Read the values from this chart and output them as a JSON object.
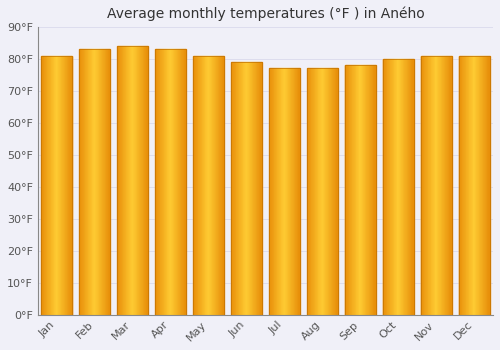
{
  "title": "Average monthly temperatures (°F ) in Aného",
  "months": [
    "Jan",
    "Feb",
    "Mar",
    "Apr",
    "May",
    "Jun",
    "Jul",
    "Aug",
    "Sep",
    "Oct",
    "Nov",
    "Dec"
  ],
  "values": [
    81,
    83,
    84,
    83,
    81,
    79,
    77,
    77,
    78,
    80,
    81,
    81
  ],
  "bar_color_center": "#FFCC33",
  "bar_color_edge": "#E8900A",
  "background_color": "#F0F0F8",
  "ylim": [
    0,
    90
  ],
  "yticks": [
    0,
    10,
    20,
    30,
    40,
    50,
    60,
    70,
    80,
    90
  ],
  "title_fontsize": 10,
  "tick_fontsize": 8,
  "grid_color": "#DDDDEE",
  "bar_width": 0.82
}
